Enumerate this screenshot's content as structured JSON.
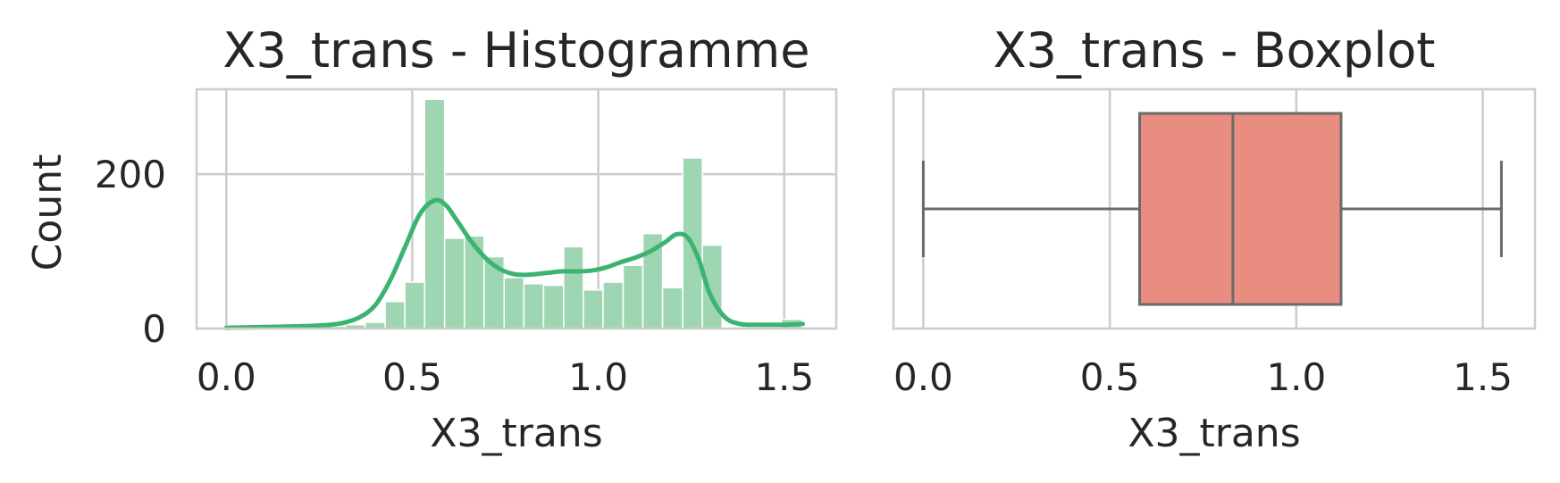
{
  "chart_data": [
    {
      "type": "bar",
      "subtype": "histogram",
      "title": "X3_trans - Histogramme",
      "xlabel": "X3_trans",
      "ylabel": "Count",
      "xlim": [
        -0.08,
        1.64
      ],
      "ylim": [
        0,
        310
      ],
      "xticks": [
        "0.0",
        "0.5",
        "1.0",
        "1.5"
      ],
      "yticks": [
        "0",
        "200"
      ],
      "grid": true,
      "bar_color": "#9ed6b2",
      "kde_color": "#3cb371",
      "bins": [
        {
          "x0": 0.0,
          "x1": 0.053,
          "count": 1
        },
        {
          "x0": 0.053,
          "x1": 0.107,
          "count": 0
        },
        {
          "x0": 0.107,
          "x1": 0.16,
          "count": 0
        },
        {
          "x0": 0.16,
          "x1": 0.213,
          "count": 1
        },
        {
          "x0": 0.213,
          "x1": 0.267,
          "count": 0
        },
        {
          "x0": 0.267,
          "x1": 0.32,
          "count": 3
        },
        {
          "x0": 0.32,
          "x1": 0.373,
          "count": 5
        },
        {
          "x0": 0.373,
          "x1": 0.427,
          "count": 8
        },
        {
          "x0": 0.427,
          "x1": 0.48,
          "count": 35
        },
        {
          "x0": 0.48,
          "x1": 0.533,
          "count": 60
        },
        {
          "x0": 0.533,
          "x1": 0.587,
          "count": 297
        },
        {
          "x0": 0.587,
          "x1": 0.64,
          "count": 117
        },
        {
          "x0": 0.64,
          "x1": 0.693,
          "count": 120
        },
        {
          "x0": 0.693,
          "x1": 0.747,
          "count": 93
        },
        {
          "x0": 0.747,
          "x1": 0.8,
          "count": 66
        },
        {
          "x0": 0.8,
          "x1": 0.853,
          "count": 58
        },
        {
          "x0": 0.853,
          "x1": 0.907,
          "count": 56
        },
        {
          "x0": 0.907,
          "x1": 0.96,
          "count": 106
        },
        {
          "x0": 0.96,
          "x1": 1.013,
          "count": 50
        },
        {
          "x0": 1.013,
          "x1": 1.067,
          "count": 60
        },
        {
          "x0": 1.067,
          "x1": 1.12,
          "count": 82
        },
        {
          "x0": 1.12,
          "x1": 1.173,
          "count": 123
        },
        {
          "x0": 1.173,
          "x1": 1.227,
          "count": 53
        },
        {
          "x0": 1.227,
          "x1": 1.28,
          "count": 221
        },
        {
          "x0": 1.28,
          "x1": 1.333,
          "count": 108
        },
        {
          "x0": 1.333,
          "x1": 1.387,
          "count": 2
        },
        {
          "x0": 1.387,
          "x1": 1.44,
          "count": 0
        },
        {
          "x0": 1.44,
          "x1": 1.493,
          "count": 0
        },
        {
          "x0": 1.493,
          "x1": 1.547,
          "count": 12
        }
      ],
      "kde": {
        "x": [
          0.0,
          0.1,
          0.2,
          0.28,
          0.32,
          0.36,
          0.4,
          0.44,
          0.48,
          0.52,
          0.56,
          0.59,
          0.62,
          0.66,
          0.7,
          0.74,
          0.78,
          0.82,
          0.86,
          0.9,
          0.94,
          0.98,
          1.02,
          1.06,
          1.1,
          1.14,
          1.18,
          1.21,
          1.24,
          1.27,
          1.3,
          1.34,
          1.38,
          1.42,
          1.46,
          1.5,
          1.55
        ],
        "y": [
          1,
          2,
          3,
          5,
          8,
          15,
          30,
          62,
          105,
          148,
          166,
          160,
          140,
          112,
          90,
          76,
          70,
          70,
          72,
          74,
          74,
          75,
          79,
          86,
          92,
          100,
          112,
          122,
          118,
          90,
          45,
          15,
          6,
          5,
          5,
          5,
          6
        ]
      }
    },
    {
      "type": "box",
      "title": "X3_trans - Boxplot",
      "xlabel": "X3_trans",
      "xlim": [
        -0.08,
        1.64
      ],
      "xticks": [
        "0.0",
        "0.5",
        "1.0",
        "1.5"
      ],
      "grid": true,
      "box_color": "#e88d80",
      "line_color": "#6b6b6b",
      "whisker_low": 0.0,
      "q1": 0.58,
      "median": 0.83,
      "q3": 1.12,
      "whisker_high": 1.55
    }
  ]
}
